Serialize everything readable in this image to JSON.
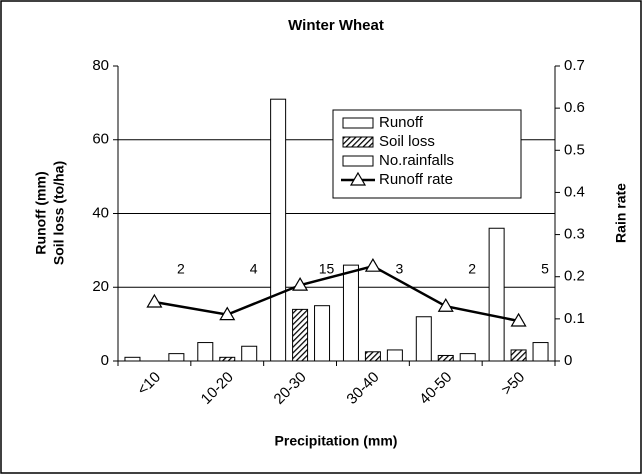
{
  "chart_data": {
    "type": "bar",
    "title": "Winter Wheat",
    "x_label": "Precipitation (mm)",
    "y_label": [
      "Runoff (mm)",
      "Soil loss (to/ha)"
    ],
    "y2_label": "Rain rate",
    "categories": [
      "<10",
      "10-20",
      "20-30",
      "30-40",
      "40-50",
      ">50"
    ],
    "series": [
      {
        "name": "Runoff",
        "type": "bar",
        "color": "#ffffff",
        "values": [
          1,
          5,
          71,
          26,
          12,
          36
        ]
      },
      {
        "name": "Soil loss",
        "type": "bar",
        "color": "#000000",
        "pattern": "hatch",
        "values": [
          0,
          1,
          14,
          2.5,
          1.5,
          3
        ]
      },
      {
        "name": "No.rainfalls",
        "type": "bar",
        "color": "#ffffff",
        "values": [
          2,
          4,
          15,
          3,
          2,
          5
        ],
        "data_labels": true
      },
      {
        "name": "Runoff rate",
        "type": "line",
        "axis": "y2",
        "color": "#000000",
        "marker": "triangle",
        "values": [
          0.14,
          0.11,
          0.18,
          0.225,
          0.13,
          0.095
        ]
      }
    ],
    "ylim": [
      0,
      80
    ],
    "yticks": [
      0,
      20,
      40,
      60,
      80
    ],
    "y2lim": [
      0,
      0.7
    ],
    "y2ticks": [
      0,
      0.1,
      0.2,
      0.3,
      0.4,
      0.5,
      0.6,
      0.7
    ],
    "grid": true,
    "legend": "upper right"
  }
}
